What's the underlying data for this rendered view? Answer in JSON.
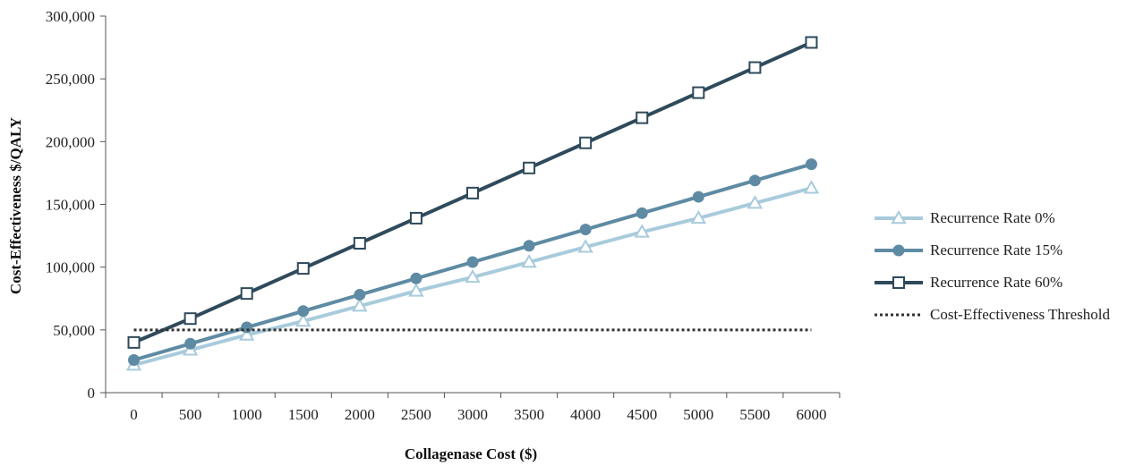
{
  "chart_data": {
    "type": "line",
    "title": "",
    "xlabel": "Collagenase Cost ($)",
    "ylabel": "Cost-Effectiveness $/QALY",
    "categories": [
      "0",
      "500",
      "1000",
      "1500",
      "2000",
      "2500",
      "3000",
      "3500",
      "4000",
      "4500",
      "5000",
      "5500",
      "6000"
    ],
    "y_ticks": [
      "0",
      "50,000",
      "100,000",
      "150,000",
      "200,000",
      "250,000",
      "300,000"
    ],
    "ylim": [
      0,
      300000
    ],
    "grid": false,
    "legend_position": "right",
    "series": [
      {
        "name": "Recurrence Rate 0%",
        "marker": "triangle-open",
        "color": "#a8cbdc",
        "values": [
          22000,
          34000,
          46000,
          57000,
          69000,
          81000,
          92000,
          104000,
          116000,
          128000,
          139000,
          151000,
          163000
        ]
      },
      {
        "name": "Recurrence Rate 15%",
        "marker": "circle-filled",
        "color": "#5e8ba3",
        "values": [
          26000,
          39000,
          52000,
          65000,
          78000,
          91000,
          104000,
          117000,
          130000,
          143000,
          156000,
          169000,
          182000
        ]
      },
      {
        "name": "Recurrence Rate 60%",
        "marker": "square-open",
        "color": "#2f4a5b",
        "values": [
          40000,
          59000,
          79000,
          99000,
          119000,
          139000,
          159000,
          179000,
          199000,
          219000,
          239000,
          259000,
          279000
        ]
      },
      {
        "name": "Cost-Effectiveness Threshold",
        "marker": "none",
        "style": "dotted",
        "color": "#333333",
        "values": [
          50000,
          50000,
          50000,
          50000,
          50000,
          50000,
          50000,
          50000,
          50000,
          50000,
          50000,
          50000,
          50000
        ]
      }
    ]
  }
}
